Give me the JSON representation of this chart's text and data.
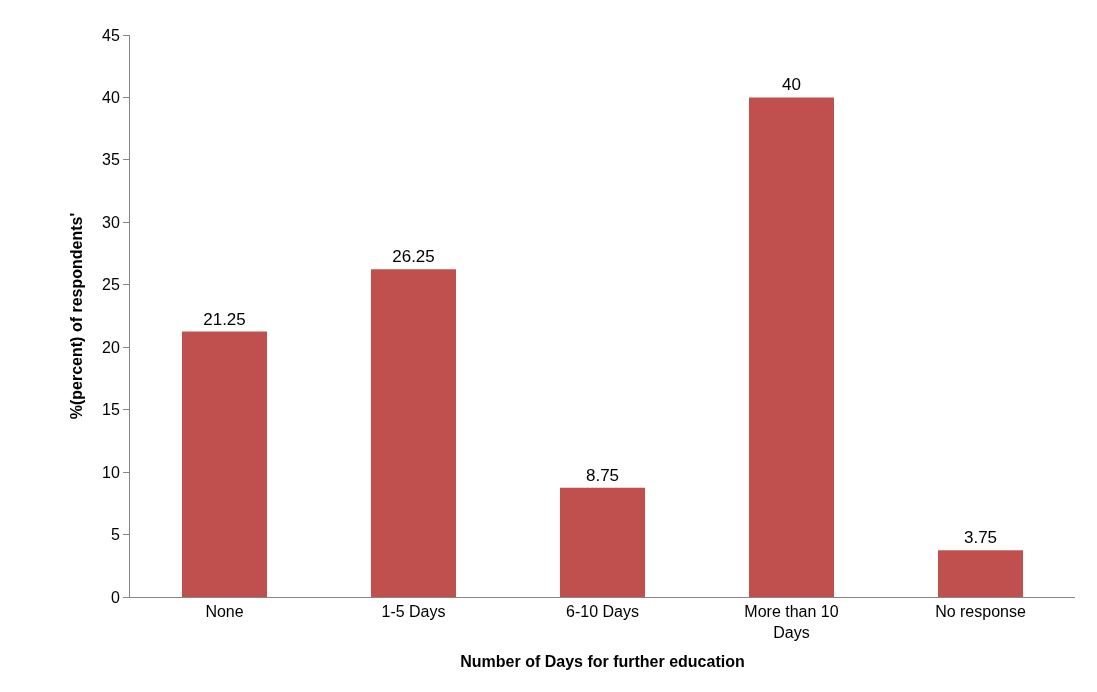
{
  "chart_data": {
    "type": "bar",
    "xlabel": "Number of Days for further education",
    "ylabel": "%(percent) of respondents'",
    "categories": [
      "None",
      "1-5 Days",
      "6-10 Days",
      "More than 10 Days",
      "No response"
    ],
    "values": [
      21.25,
      26.25,
      8.75,
      40,
      3.75
    ],
    "color": "#c0504d",
    "ylim": [
      0,
      45
    ],
    "yticks": [
      0,
      5,
      10,
      15,
      20,
      25,
      30,
      35,
      40,
      45
    ],
    "data_labels": true
  }
}
